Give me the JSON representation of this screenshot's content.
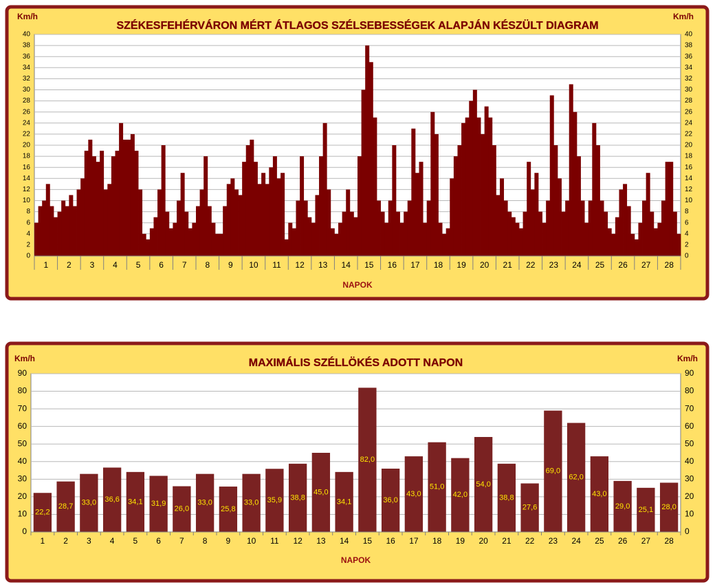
{
  "chart_data": [
    {
      "type": "bar",
      "title": "SZÉKESFEHÉRVÁRON MÉRT ÁTLAGOS SZÉLSEBESSÉGEK ALAPJÁN KÉSZÜLT DIAGRAM",
      "ylabel": "Km/h",
      "xlabel": "NAPOK",
      "color": "#7b0000",
      "grid": true,
      "ylim": [
        0,
        40
      ],
      "yticks": [
        0,
        2,
        4,
        6,
        8,
        10,
        12,
        14,
        16,
        18,
        20,
        22,
        24,
        26,
        28,
        30,
        32,
        34,
        36,
        38,
        40
      ],
      "categories": [
        "1",
        "2",
        "3",
        "4",
        "5",
        "6",
        "7",
        "8",
        "9",
        "10",
        "11",
        "12",
        "13",
        "14",
        "15",
        "16",
        "17",
        "18",
        "19",
        "20",
        "21",
        "22",
        "23",
        "24",
        "25",
        "26",
        "27",
        "28"
      ],
      "values": [
        [
          6,
          9,
          10,
          13,
          9,
          7
        ],
        [
          8,
          10,
          9,
          11,
          9,
          12
        ],
        [
          14,
          19,
          21,
          18,
          17,
          19
        ],
        [
          12,
          13,
          18,
          19,
          24,
          21
        ],
        [
          21,
          22,
          19,
          12,
          4,
          3
        ],
        [
          5,
          7,
          12,
          20,
          8,
          5
        ],
        [
          6,
          10,
          15,
          8,
          5,
          6
        ],
        [
          9,
          12,
          18,
          9,
          6,
          4
        ],
        [
          4,
          9,
          13,
          14,
          12,
          11
        ],
        [
          17,
          20,
          21,
          17,
          13,
          15
        ],
        [
          13,
          16,
          18,
          14,
          15,
          3
        ],
        [
          6,
          5,
          10,
          18,
          10,
          7
        ],
        [
          6,
          11,
          18,
          24,
          12,
          5
        ],
        [
          4,
          6,
          8,
          12,
          8,
          7
        ],
        [
          18,
          30,
          38,
          35,
          25,
          10
        ],
        [
          8,
          6,
          10,
          20,
          8,
          6
        ],
        [
          8,
          10,
          23,
          15,
          17,
          6
        ],
        [
          10,
          26,
          22,
          6,
          4,
          5
        ],
        [
          14,
          18,
          20,
          24,
          25,
          28
        ],
        [
          30,
          25,
          22,
          27,
          25,
          20
        ],
        [
          11,
          14,
          10,
          8,
          7,
          6
        ],
        [
          5,
          8,
          17,
          12,
          15,
          8
        ],
        [
          6,
          10,
          29,
          20,
          14,
          8
        ],
        [
          10,
          31,
          26,
          18,
          10,
          6
        ],
        [
          10,
          24,
          20,
          10,
          8,
          5
        ],
        [
          4,
          7,
          12,
          13,
          9,
          4
        ],
        [
          3,
          6,
          10,
          15,
          8,
          5
        ],
        [
          6,
          10,
          17,
          17,
          8,
          4
        ]
      ]
    },
    {
      "type": "bar",
      "title": "MAXIMÁLIS SZÉLLÖKÉS ADOTT NAPON",
      "ylabel": "Km/h",
      "xlabel": "NAPOK",
      "color": "#7a2222",
      "label_color": "#ffe600",
      "grid": true,
      "ylim": [
        0,
        90
      ],
      "yticks": [
        0,
        10,
        20,
        30,
        40,
        50,
        60,
        70,
        80,
        90
      ],
      "categories": [
        "1",
        "2",
        "3",
        "4",
        "5",
        "6",
        "7",
        "8",
        "9",
        "10",
        "11",
        "12",
        "13",
        "14",
        "15",
        "16",
        "17",
        "18",
        "19",
        "20",
        "21",
        "22",
        "23",
        "24",
        "25",
        "26",
        "27",
        "28"
      ],
      "values": [
        22.2,
        28.7,
        33.0,
        36.6,
        34.1,
        31.9,
        26.0,
        33.0,
        25.8,
        33.0,
        35.9,
        38.8,
        45.0,
        34.1,
        82.0,
        36.0,
        43.0,
        51.0,
        42.0,
        54.0,
        38.8,
        27.6,
        69.0,
        62.0,
        43.0,
        29.0,
        25.1,
        28.0
      ],
      "value_labels": [
        "22,2",
        "28,7",
        "33,0",
        "36,6",
        "34,1",
        "31,9",
        "26,0",
        "33,0",
        "25,8",
        "33,0",
        "35,9",
        "38,8",
        "45,0",
        "34,1",
        "82,0",
        "36,0",
        "43,0",
        "51,0",
        "42,0",
        "54,0",
        "38,8",
        "27,6",
        "69,0",
        "62,0",
        "43,0",
        "29,0",
        "25,1",
        "28,0"
      ]
    }
  ]
}
